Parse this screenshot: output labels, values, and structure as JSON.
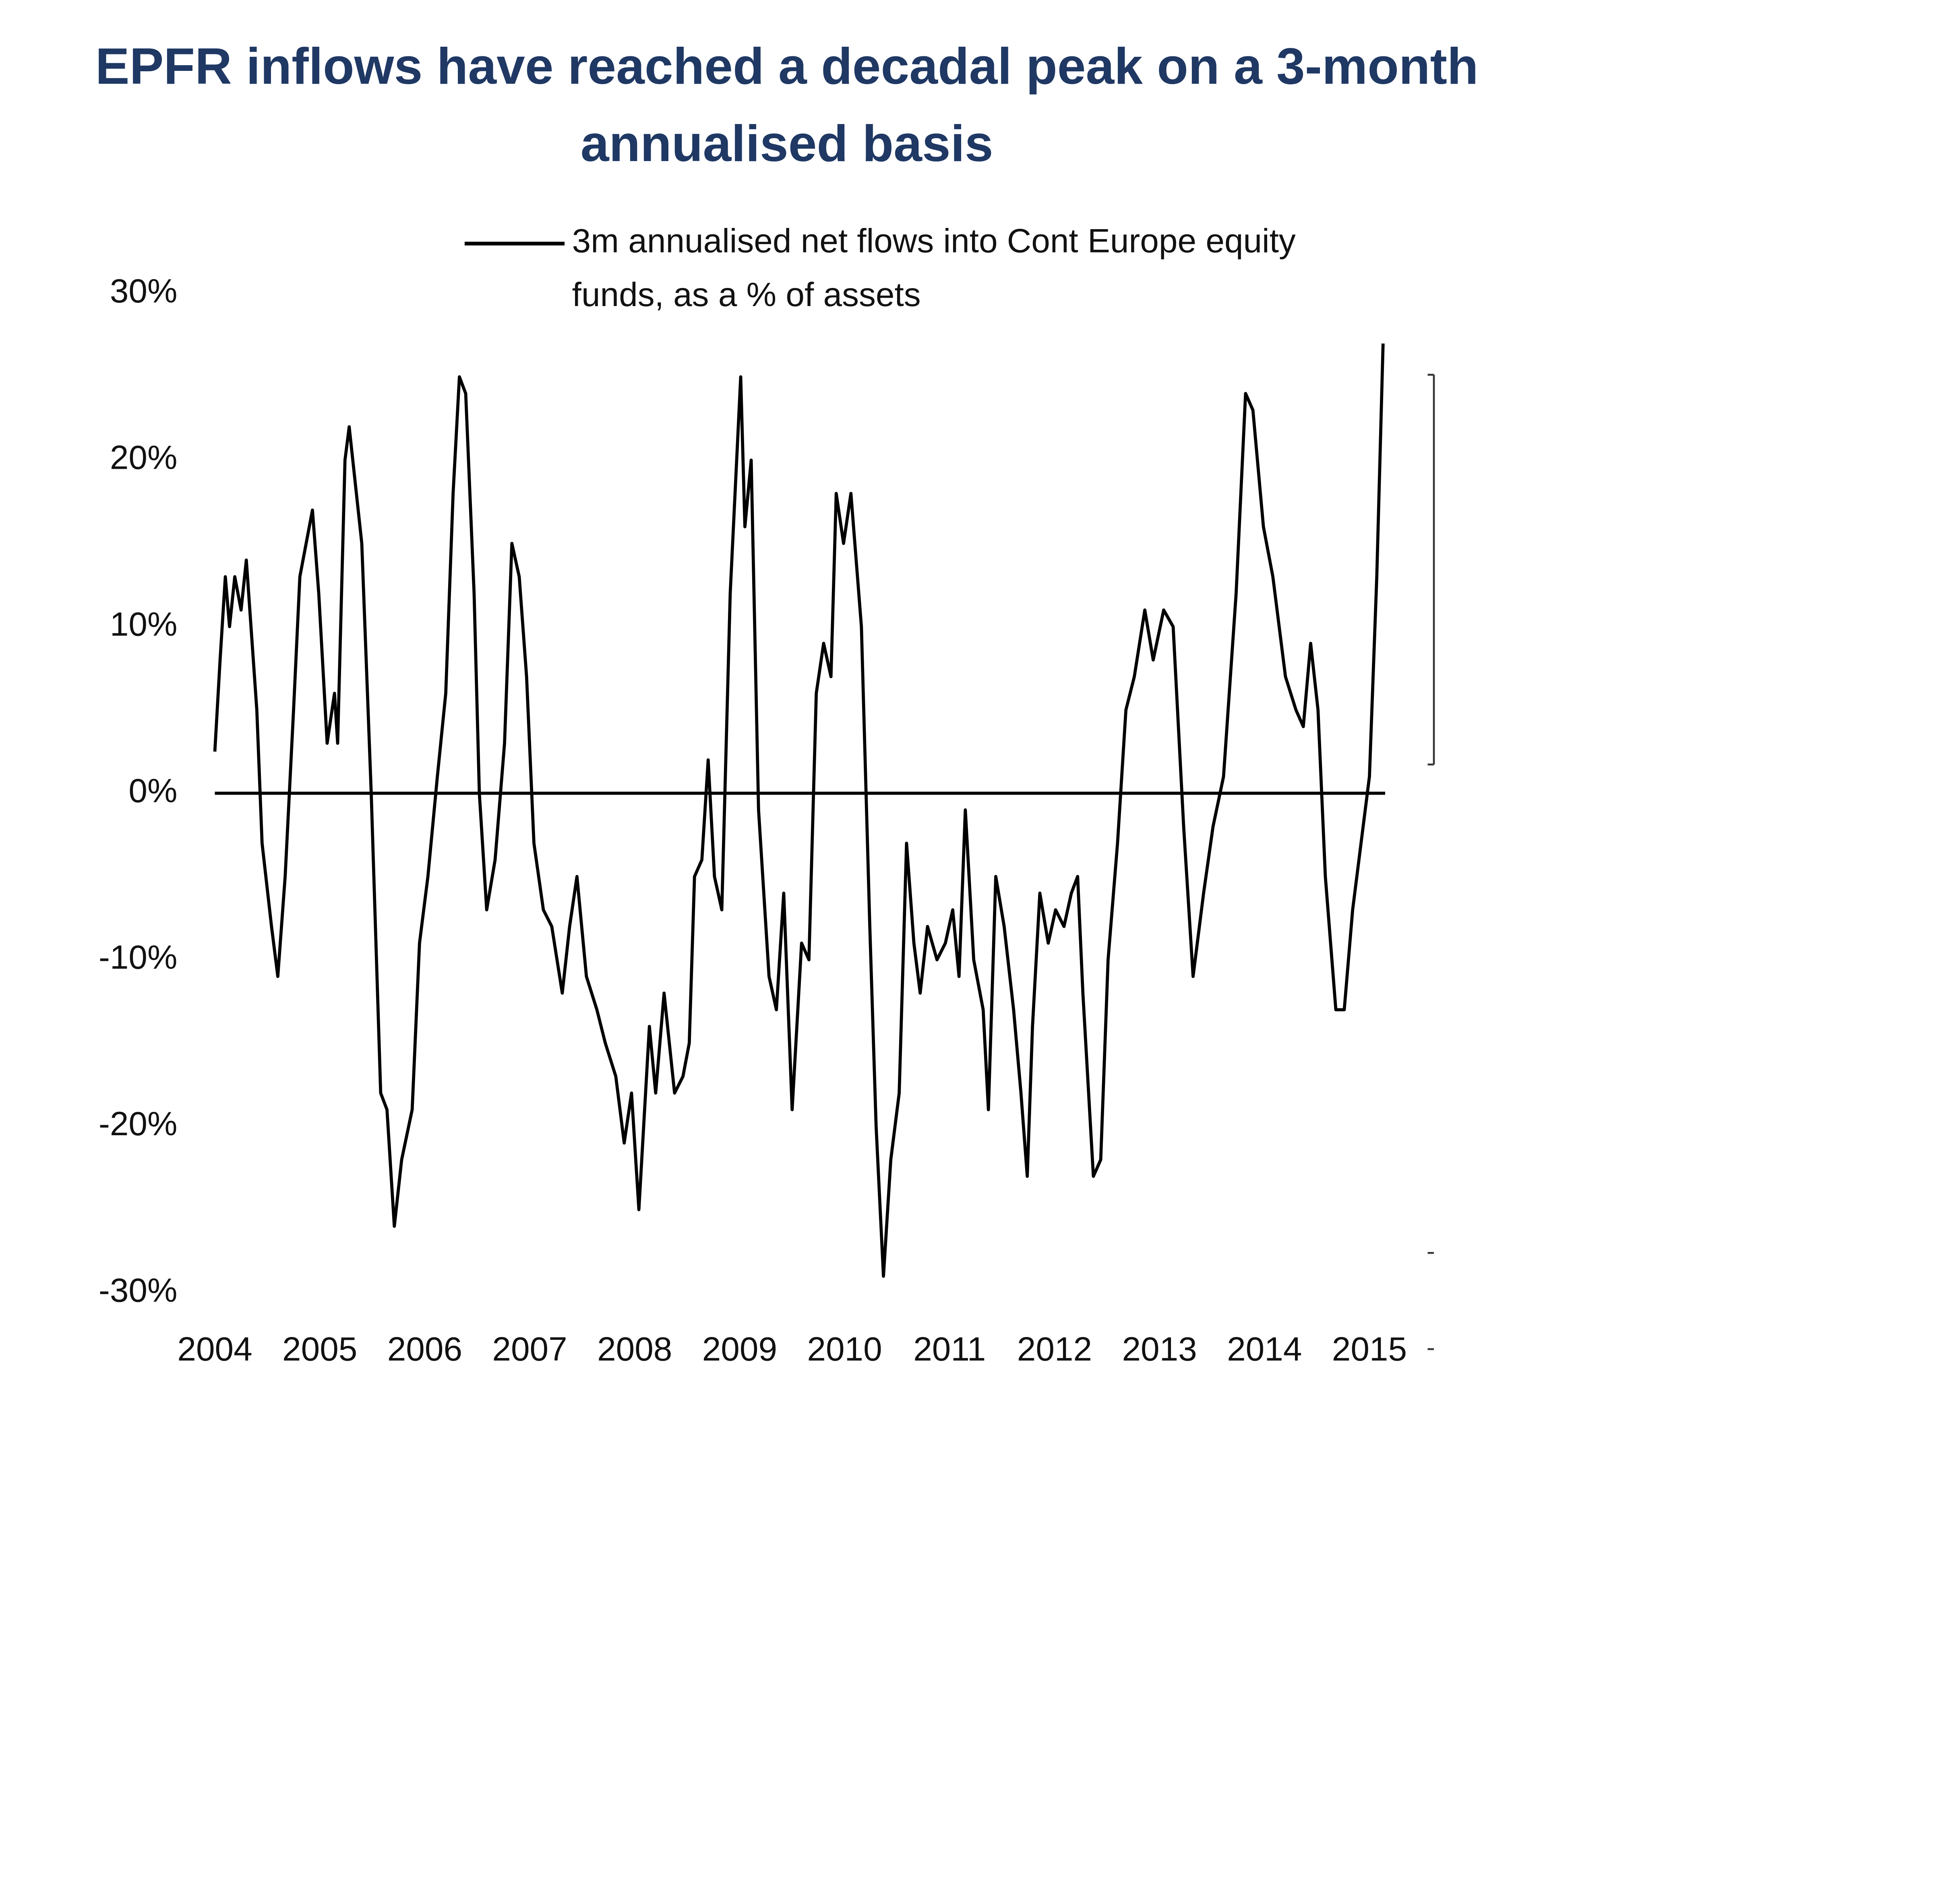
{
  "chart_data": {
    "type": "line",
    "title": "EPFR inflows have reached a decadal peak on a 3-month annualised basis",
    "x": [
      2004.0,
      2004.05,
      2004.1,
      2004.14,
      2004.19,
      2004.25,
      2004.3,
      2004.4,
      2004.45,
      2004.54,
      2004.6,
      2004.67,
      2004.75,
      2004.81,
      2004.93,
      2004.99,
      2005.07,
      2005.14,
      2005.17,
      2005.24,
      2005.28,
      2005.4,
      2005.49,
      2005.58,
      2005.64,
      2005.71,
      2005.78,
      2005.88,
      2005.95,
      2006.03,
      2006.12,
      2006.2,
      2006.27,
      2006.33,
      2006.39,
      2006.47,
      2006.52,
      2006.59,
      2006.67,
      2006.76,
      2006.83,
      2006.9,
      2006.97,
      2007.04,
      2007.13,
      2007.21,
      2007.31,
      2007.38,
      2007.45,
      2007.54,
      2007.64,
      2007.72,
      2007.82,
      2007.9,
      2007.97,
      2008.04,
      2008.14,
      2008.2,
      2008.28,
      2008.38,
      2008.46,
      2008.52,
      2008.57,
      2008.64,
      2008.7,
      2008.76,
      2008.83,
      2008.91,
      2009.01,
      2009.05,
      2009.11,
      2009.18,
      2009.28,
      2009.35,
      2009.42,
      2009.5,
      2009.59,
      2009.66,
      2009.73,
      2009.8,
      2009.87,
      2009.92,
      2009.99,
      2010.06,
      2010.16,
      2010.24,
      2010.3,
      2010.37,
      2010.44,
      2010.52,
      2010.59,
      2010.66,
      2010.72,
      2010.79,
      2010.88,
      2010.96,
      2011.03,
      2011.09,
      2011.15,
      2011.23,
      2011.32,
      2011.37,
      2011.44,
      2011.52,
      2011.61,
      2011.68,
      2011.74,
      2011.79,
      2011.86,
      2011.94,
      2012.01,
      2012.09,
      2012.16,
      2012.22,
      2012.27,
      2012.37,
      2012.44,
      2012.51,
      2012.6,
      2012.68,
      2012.76,
      2012.86,
      2012.94,
      2013.04,
      2013.13,
      2013.23,
      2013.32,
      2013.42,
      2013.51,
      2013.61,
      2013.73,
      2013.82,
      2013.89,
      2013.99,
      2014.08,
      2014.2,
      2014.3,
      2014.37,
      2014.44,
      2014.51,
      2014.58,
      2014.68,
      2014.76,
      2014.84,
      2014.92,
      2015.0,
      2015.07,
      2015.13
    ],
    "series": [
      {
        "name": "3m annualised net flows into Cont Europe equity funds, as a % of assets",
        "color": "#000000",
        "values": [
          2.5,
          8,
          13,
          10,
          13,
          11,
          14,
          5,
          -3,
          -8,
          -11,
          -5,
          5,
          13,
          17,
          12,
          3,
          6,
          3,
          20,
          22,
          15,
          0,
          -18,
          -19,
          -26,
          -22,
          -19,
          -9,
          -5,
          1,
          6,
          18,
          25,
          24,
          12,
          0,
          -7,
          -4,
          3,
          15,
          13,
          7,
          -3,
          -7,
          -8,
          -12,
          -8,
          -5,
          -11,
          -13,
          -15,
          -17,
          -21,
          -18,
          -25,
          -14,
          -18,
          -12,
          -18,
          -17,
          -15,
          -5,
          -4,
          2,
          -5,
          -7,
          12,
          25,
          16,
          20,
          -1,
          -11,
          -13,
          -6,
          -19,
          -9,
          -10,
          6,
          9,
          7,
          18,
          15,
          18,
          10,
          -8,
          -20,
          -29,
          -22,
          -18,
          -3,
          -9,
          -12,
          -8,
          -10,
          -9,
          -7,
          -11,
          -1,
          -10,
          -13,
          -19,
          -5,
          -8,
          -13,
          -18,
          -23,
          -14,
          -6,
          -9,
          -7,
          -8,
          -6,
          -5,
          -12,
          -23,
          -22,
          -10,
          -3,
          5,
          7,
          11,
          8,
          11,
          10,
          -2,
          -11,
          -6,
          -2,
          1,
          12,
          24,
          23,
          16,
          13,
          7,
          5,
          4,
          9,
          5,
          -5,
          -13,
          -13,
          -7,
          -3,
          1,
          13,
          27
        ]
      }
    ],
    "xlim": [
      2004,
      2015.15
    ],
    "xticks": [
      2004,
      2005,
      2006,
      2007,
      2008,
      2009,
      2010,
      2011,
      2012,
      2013,
      2014,
      2015
    ],
    "ylim": [
      -30,
      30
    ],
    "yticks": [
      {
        "value": 30,
        "label": "30%"
      },
      {
        "value": 20,
        "label": "20%"
      },
      {
        "value": 10,
        "label": "10%"
      },
      {
        "value": 0,
        "label": "0%"
      },
      {
        "value": -10,
        "label": "-10%"
      },
      {
        "value": -20,
        "label": "-20%"
      },
      {
        "value": -30,
        "label": "-30%"
      }
    ],
    "zero_line": true,
    "grid": false
  }
}
